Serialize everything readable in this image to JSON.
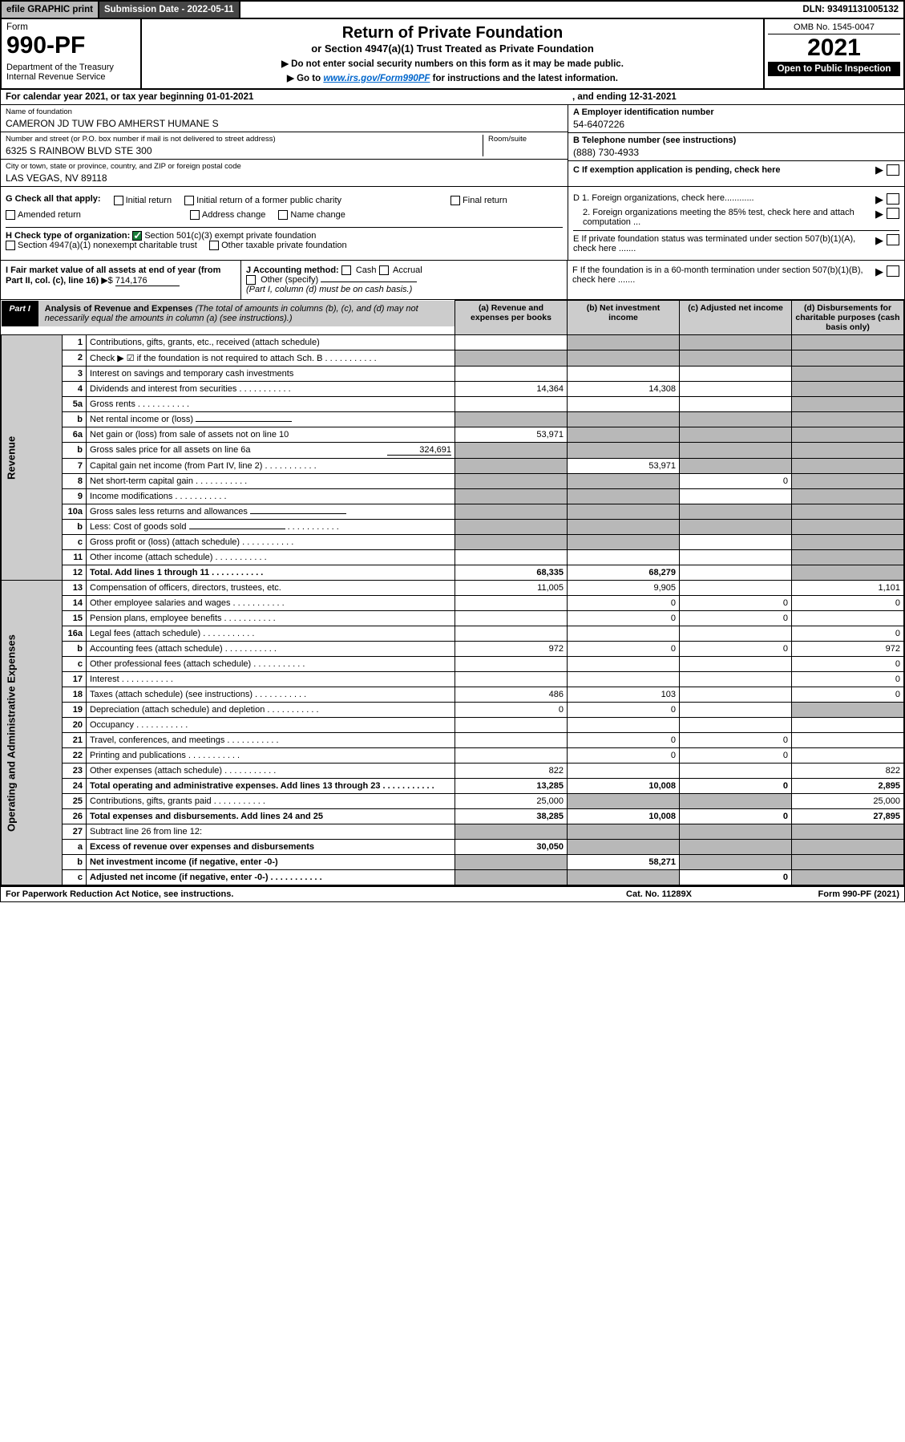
{
  "topbar": {
    "efile": "efile GRAPHIC print",
    "subdate_label": "Submission Date - 2022-05-11",
    "dln": "DLN: 93491131005132"
  },
  "head": {
    "form_label": "Form",
    "form_no": "990-PF",
    "dept": "Department of the Treasury\nInternal Revenue Service",
    "title": "Return of Private Foundation",
    "subtitle": "or Section 4947(a)(1) Trust Treated as Private Foundation",
    "instr1": "▶ Do not enter social security numbers on this form as it may be made public.",
    "instr2_pre": "▶ Go to ",
    "instr2_link": "www.irs.gov/Form990PF",
    "instr2_post": " for instructions and the latest information.",
    "omb": "OMB No. 1545-0047",
    "year": "2021",
    "open": "Open to Public Inspection"
  },
  "band": {
    "left": "For calendar year 2021, or tax year beginning 01-01-2021",
    "right": ", and ending 12-31-2021"
  },
  "entity": {
    "name_lbl": "Name of foundation",
    "name": "CAMERON JD TUW FBO AMHERST HUMANE S",
    "addr_lbl": "Number and street (or P.O. box number if mail is not delivered to street address)",
    "addr": "6325 S RAINBOW BLVD STE 300",
    "room_lbl": "Room/suite",
    "city_lbl": "City or town, state or province, country, and ZIP or foreign postal code",
    "city": "LAS VEGAS, NV  89118",
    "ein_lbl": "A Employer identification number",
    "ein": "54-6407226",
    "phone_lbl": "B Telephone number (see instructions)",
    "phone": "(888) 730-4933",
    "c_lbl": "C If exemption application is pending, check here"
  },
  "g": {
    "label": "G Check all that apply:",
    "initial": "Initial return",
    "initial_former": "Initial return of a former public charity",
    "final": "Final return",
    "amended": "Amended return",
    "addr_change": "Address change",
    "name_change": "Name change"
  },
  "h": {
    "label": "H Check type of organization:",
    "opt1": "Section 501(c)(3) exempt private foundation",
    "opt2": "Section 4947(a)(1) nonexempt charitable trust",
    "opt3": "Other taxable private foundation"
  },
  "right_box": {
    "d1": "D 1. Foreign organizations, check here............",
    "d2": "2. Foreign organizations meeting the 85% test, check here and attach computation ...",
    "e": "E  If private foundation status was terminated under section 507(b)(1)(A), check here .......",
    "f": "F  If the foundation is in a 60-month termination under section 507(b)(1)(B), check here ......."
  },
  "i": {
    "label": "I Fair market value of all assets at end of year (from Part II, col. (c), line 16)",
    "arrow": "▶$",
    "value": "714,176"
  },
  "j": {
    "label": "J Accounting method:",
    "cash": "Cash",
    "accrual": "Accrual",
    "other": "Other (specify)",
    "note": "(Part I, column (d) must be on cash basis.)"
  },
  "part1": {
    "tag": "Part I",
    "title": "Analysis of Revenue and Expenses",
    "sub": " (The total of amounts in columns (b), (c), and (d) may not necessarily equal the amounts in column (a) (see instructions).)",
    "col_a": "(a)  Revenue and expenses per books",
    "col_b": "(b)  Net investment income",
    "col_c": "(c)  Adjusted net income",
    "col_d": "(d)  Disbursements for charitable purposes (cash basis only)"
  },
  "sidelabels": {
    "rev": "Revenue",
    "exp": "Operating and Administrative Expenses"
  },
  "rows": [
    {
      "n": "1",
      "d": "Contributions, gifts, grants, etc., received (attach schedule)",
      "a": "",
      "b": "",
      "c": "",
      "dd": "",
      "ash": false,
      "bsh": true,
      "csh": true,
      "dsh": true
    },
    {
      "n": "2",
      "d": "Check ▶ ☑ if the foundation is not required to attach Sch. B",
      "a": "",
      "b": "",
      "c": "",
      "dd": "",
      "ash": true,
      "bsh": true,
      "csh": true,
      "dsh": true,
      "dots": true
    },
    {
      "n": "3",
      "d": "Interest on savings and temporary cash investments",
      "a": "",
      "b": "",
      "c": "",
      "dd": "",
      "dsh": true
    },
    {
      "n": "4",
      "d": "Dividends and interest from securities",
      "a": "14,364",
      "b": "14,308",
      "c": "",
      "dd": "",
      "dsh": true,
      "dots": true
    },
    {
      "n": "5a",
      "d": "Gross rents",
      "a": "",
      "b": "",
      "c": "",
      "dd": "",
      "dsh": true,
      "dots": true
    },
    {
      "n": "b",
      "d": "Net rental income or (loss)",
      "a": "",
      "b": "",
      "c": "",
      "dd": "",
      "ash": true,
      "bsh": true,
      "csh": true,
      "dsh": true,
      "under": true
    },
    {
      "n": "6a",
      "d": "Net gain or (loss) from sale of assets not on line 10",
      "a": "53,971",
      "b": "",
      "c": "",
      "dd": "",
      "bsh": true,
      "csh": true,
      "dsh": true
    },
    {
      "n": "b",
      "d": "Gross sales price for all assets on line 6a",
      "a": "",
      "b": "",
      "c": "",
      "dd": "",
      "ash": true,
      "bsh": true,
      "csh": true,
      "dsh": true,
      "inline": "324,691"
    },
    {
      "n": "7",
      "d": "Capital gain net income (from Part IV, line 2)",
      "a": "",
      "b": "53,971",
      "c": "",
      "dd": "",
      "ash": true,
      "csh": true,
      "dsh": true,
      "dots": true
    },
    {
      "n": "8",
      "d": "Net short-term capital gain",
      "a": "",
      "b": "",
      "c": "0",
      "dd": "",
      "ash": true,
      "bsh": true,
      "dsh": true,
      "dots": true
    },
    {
      "n": "9",
      "d": "Income modifications",
      "a": "",
      "b": "",
      "c": "",
      "dd": "",
      "ash": true,
      "bsh": true,
      "dsh": true,
      "dots": true
    },
    {
      "n": "10a",
      "d": "Gross sales less returns and allowances",
      "a": "",
      "b": "",
      "c": "",
      "dd": "",
      "ash": true,
      "bsh": true,
      "csh": true,
      "dsh": true,
      "under": true
    },
    {
      "n": "b",
      "d": "Less: Cost of goods sold",
      "a": "",
      "b": "",
      "c": "",
      "dd": "",
      "ash": true,
      "bsh": true,
      "csh": true,
      "dsh": true,
      "dots": true,
      "under": true
    },
    {
      "n": "c",
      "d": "Gross profit or (loss) (attach schedule)",
      "a": "",
      "b": "",
      "c": "",
      "dd": "",
      "ash": true,
      "bsh": true,
      "dsh": true,
      "dots": true
    },
    {
      "n": "11",
      "d": "Other income (attach schedule)",
      "a": "",
      "b": "",
      "c": "",
      "dd": "",
      "dsh": true,
      "dots": true
    },
    {
      "n": "12",
      "d": "Total. Add lines 1 through 11",
      "a": "68,335",
      "b": "68,279",
      "c": "",
      "dd": "",
      "dsh": true,
      "bold": true,
      "dots": true
    },
    {
      "n": "13",
      "d": "Compensation of officers, directors, trustees, etc.",
      "a": "11,005",
      "b": "9,905",
      "c": "",
      "dd": "1,101"
    },
    {
      "n": "14",
      "d": "Other employee salaries and wages",
      "a": "",
      "b": "0",
      "c": "0",
      "dd": "0",
      "dots": true
    },
    {
      "n": "15",
      "d": "Pension plans, employee benefits",
      "a": "",
      "b": "0",
      "c": "0",
      "dd": "",
      "dots": true
    },
    {
      "n": "16a",
      "d": "Legal fees (attach schedule)",
      "a": "",
      "b": "",
      "c": "",
      "dd": "0",
      "dots": true
    },
    {
      "n": "b",
      "d": "Accounting fees (attach schedule)",
      "a": "972",
      "b": "0",
      "c": "0",
      "dd": "972",
      "dots": true
    },
    {
      "n": "c",
      "d": "Other professional fees (attach schedule)",
      "a": "",
      "b": "",
      "c": "",
      "dd": "0",
      "dots": true
    },
    {
      "n": "17",
      "d": "Interest",
      "a": "",
      "b": "",
      "c": "",
      "dd": "0",
      "dots": true
    },
    {
      "n": "18",
      "d": "Taxes (attach schedule) (see instructions)",
      "a": "486",
      "b": "103",
      "c": "",
      "dd": "0",
      "dots": true
    },
    {
      "n": "19",
      "d": "Depreciation (attach schedule) and depletion",
      "a": "0",
      "b": "0",
      "c": "",
      "dd": "",
      "dsh": true,
      "dots": true
    },
    {
      "n": "20",
      "d": "Occupancy",
      "a": "",
      "b": "",
      "c": "",
      "dd": "",
      "dots": true
    },
    {
      "n": "21",
      "d": "Travel, conferences, and meetings",
      "a": "",
      "b": "0",
      "c": "0",
      "dd": "",
      "dots": true
    },
    {
      "n": "22",
      "d": "Printing and publications",
      "a": "",
      "b": "0",
      "c": "0",
      "dd": "",
      "dots": true
    },
    {
      "n": "23",
      "d": "Other expenses (attach schedule)",
      "a": "822",
      "b": "",
      "c": "",
      "dd": "822",
      "dots": true
    },
    {
      "n": "24",
      "d": "Total operating and administrative expenses. Add lines 13 through 23",
      "a": "13,285",
      "b": "10,008",
      "c": "0",
      "dd": "2,895",
      "bold": true,
      "dots": true
    },
    {
      "n": "25",
      "d": "Contributions, gifts, grants paid",
      "a": "25,000",
      "b": "",
      "c": "",
      "dd": "25,000",
      "bsh": true,
      "csh": true,
      "dots": true
    },
    {
      "n": "26",
      "d": "Total expenses and disbursements. Add lines 24 and 25",
      "a": "38,285",
      "b": "10,008",
      "c": "0",
      "dd": "27,895",
      "bold": true
    },
    {
      "n": "27",
      "d": "Subtract line 26 from line 12:",
      "a": "",
      "b": "",
      "c": "",
      "dd": "",
      "ash": true,
      "bsh": true,
      "csh": true,
      "dsh": true
    },
    {
      "n": "a",
      "d": "Excess of revenue over expenses and disbursements",
      "a": "30,050",
      "b": "",
      "c": "",
      "dd": "",
      "bsh": true,
      "csh": true,
      "dsh": true,
      "bold": true
    },
    {
      "n": "b",
      "d": "Net investment income (if negative, enter -0-)",
      "a": "",
      "b": "58,271",
      "c": "",
      "dd": "",
      "ash": true,
      "csh": true,
      "dsh": true,
      "bold": true
    },
    {
      "n": "c",
      "d": "Adjusted net income (if negative, enter -0-)",
      "a": "",
      "b": "",
      "c": "0",
      "dd": "",
      "ash": true,
      "bsh": true,
      "dsh": true,
      "bold": true,
      "dots": true
    }
  ],
  "footer": {
    "left": "For Paperwork Reduction Act Notice, see instructions.",
    "mid": "Cat. No. 11289X",
    "right": "Form 990-PF (2021)"
  },
  "colors": {
    "shade": "#b8b8b8",
    "header_gray": "#cccccc",
    "dark": "#464646",
    "green": "#1a7f3a",
    "link": "#0066cc"
  }
}
